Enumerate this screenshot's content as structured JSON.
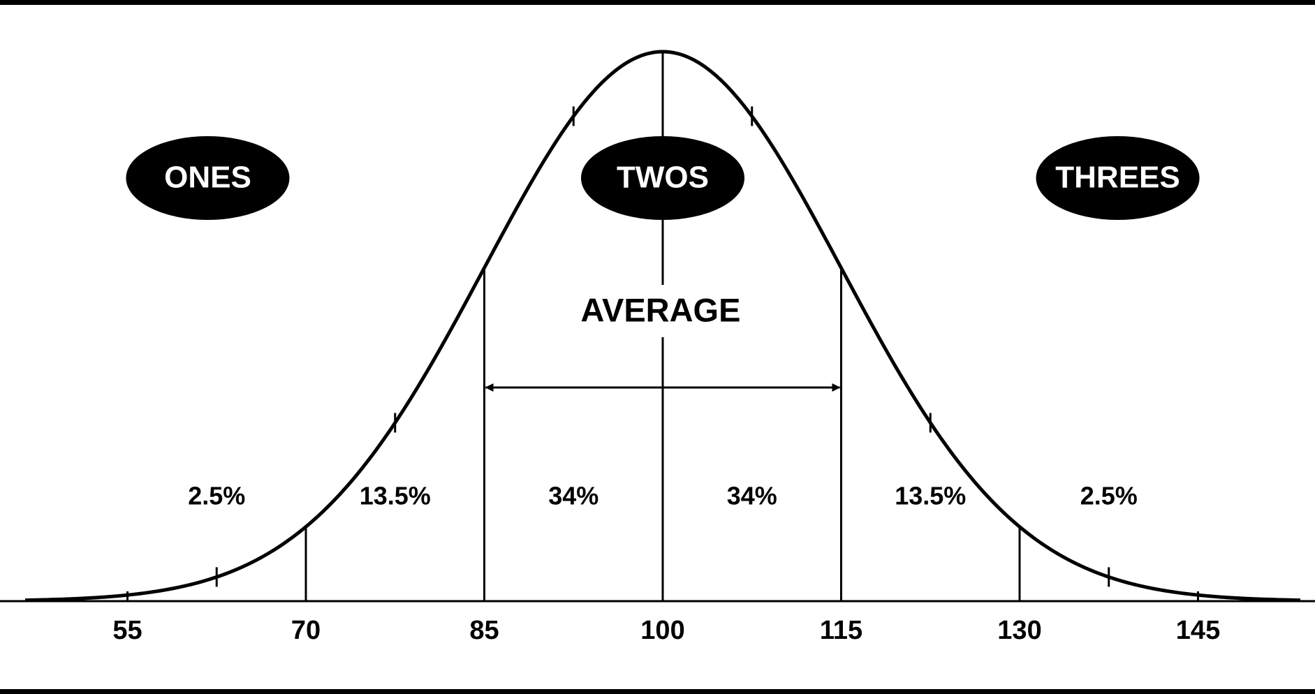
{
  "chart_data": {
    "type": "normal",
    "groups": [
      "ONES",
      "TWOS",
      "THREES"
    ],
    "annotation": "AVERAGE",
    "values": [
      2.5,
      13.5,
      34,
      34,
      13.5,
      2.5
    ],
    "value_labels": [
      "2.5%",
      "13.5%",
      "34%",
      "34%",
      "13.5%",
      "2.5%"
    ],
    "xlim": [
      46.4,
      153.6
    ],
    "xticks": [
      55,
      70,
      85,
      100,
      115,
      130,
      145
    ],
    "color": "#000000"
  }
}
